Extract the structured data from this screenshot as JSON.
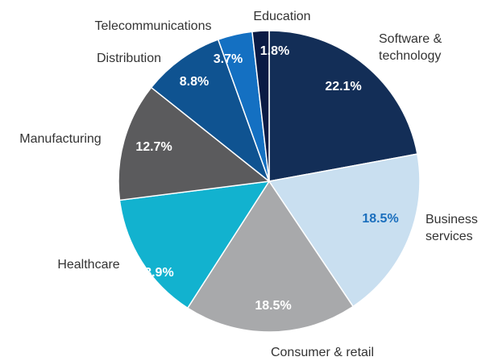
{
  "chart_data": {
    "type": "pie",
    "categories": [
      "Software & technology",
      "Business services",
      "Consumer & retail",
      "Healthcare",
      "Manufacturing",
      "Distribution",
      "Telecommunications",
      "Education"
    ],
    "values": [
      22.1,
      18.5,
      18.5,
      13.9,
      12.7,
      8.8,
      3.7,
      1.8
    ],
    "value_labels": [
      "22.1%",
      "18.5%",
      "18.5%",
      "13.9%",
      "12.7%",
      "8.8%",
      "3.7%",
      "1.8%"
    ],
    "colors": [
      "#132e57",
      "#c9dff0",
      "#a8a9ab",
      "#12b2cf",
      "#5b5b5d",
      "#0f5391",
      "#1470c2",
      "#0a1a44"
    ]
  }
}
